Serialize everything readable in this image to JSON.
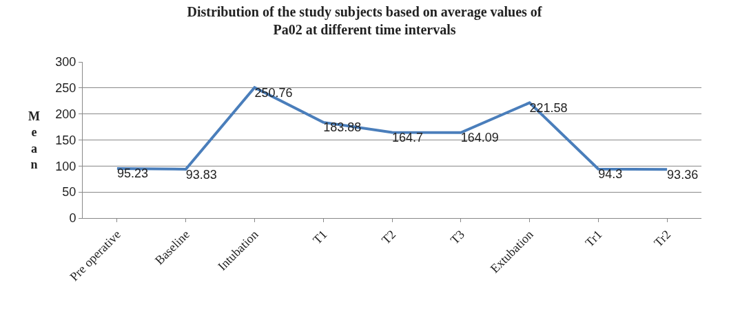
{
  "chart_data": {
    "type": "line",
    "title": "Distribution of the study subjects based on average values of\nPa02 at different time intervals",
    "ylabel": "Mean",
    "categories": [
      "Pre operative",
      "Baseline",
      "Intubation",
      "T1",
      "T2",
      "T3",
      "Extubation",
      "Tr1",
      "Tr2"
    ],
    "series": [
      {
        "color": "#4a7ebb",
        "values": [
          95.23,
          93.83,
          250.76,
          183.88,
          164.7,
          164.09,
          221.58,
          94.3,
          93.36
        ]
      }
    ],
    "ylim": [
      0,
      300
    ],
    "yticks": [
      0,
      50,
      100,
      150,
      200,
      250,
      300
    ],
    "grid": "y",
    "marker": "none",
    "line_style": "solid",
    "data_labels": true
  }
}
